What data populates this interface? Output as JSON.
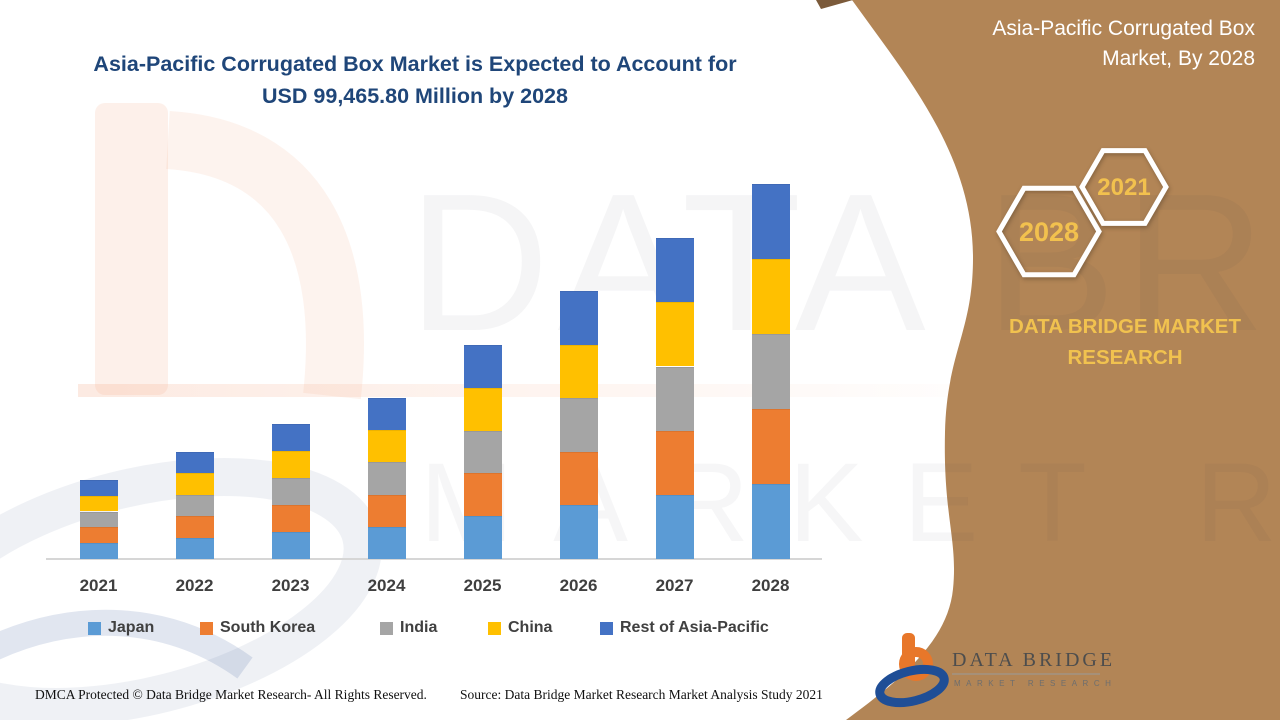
{
  "title": {
    "line1": "Asia-Pacific Corrugated Box Market is Expected to Account for",
    "line2": "USD 99,465.80 Million by 2028"
  },
  "side_panel": {
    "title_line1": "Asia-Pacific Corrugated Box",
    "title_line2": "Market, By 2028",
    "hexagons": [
      {
        "label": "2028"
      },
      {
        "label": "2021"
      }
    ],
    "brand_line1": "DATA BRIDGE MARKET",
    "brand_line2": "RESEARCH",
    "panel_color": "#B28556",
    "accent_text_color": "#F2C14E"
  },
  "watermark": {
    "line1": "DATA BRIDGE",
    "line2": "MARKET RESEARCH"
  },
  "chart_data": {
    "type": "bar",
    "stacked": true,
    "categories": [
      "2021",
      "2022",
      "2023",
      "2024",
      "2025",
      "2026",
      "2027",
      "2028"
    ],
    "series": [
      {
        "name": "Japan",
        "color": "#5B9BD5",
        "values": [
          4200,
          5680,
          7160,
          8540,
          11340,
          14200,
          17020,
          19893.16
        ]
      },
      {
        "name": "South Korea",
        "color": "#ED7D31",
        "values": [
          4200,
          5680,
          7160,
          8540,
          11340,
          14200,
          17020,
          19893.16
        ]
      },
      {
        "name": "India",
        "color": "#A5A5A5",
        "values": [
          4200,
          5680,
          7160,
          8540,
          11340,
          14200,
          17020,
          19893.16
        ]
      },
      {
        "name": "China",
        "color": "#FFC000",
        "values": [
          4200,
          5680,
          7160,
          8540,
          11340,
          14200,
          17020,
          19893.16
        ]
      },
      {
        "name": "Rest of Asia-Pacific",
        "color": "#4472C4",
        "values": [
          4200,
          5680,
          7160,
          8540,
          11340,
          14200,
          17020,
          19893.16
        ]
      }
    ],
    "totals": [
      21000,
      28400,
      35800,
      42700,
      56700,
      71000,
      85100,
      99465.8
    ],
    "ylim": [
      0,
      99465.8
    ],
    "grid": false,
    "legend_position": "bottom",
    "axis_line_color": "#d6d6d6"
  },
  "footer": {
    "dmca": "DMCA Protected © Data Bridge Market Research- All Rights Reserved.",
    "source": "Source: Data Bridge Market Research Market Analysis Study 2021"
  },
  "logo": {
    "name": "DATA BRIDGE",
    "subname": "MARKET RESEARCH"
  }
}
